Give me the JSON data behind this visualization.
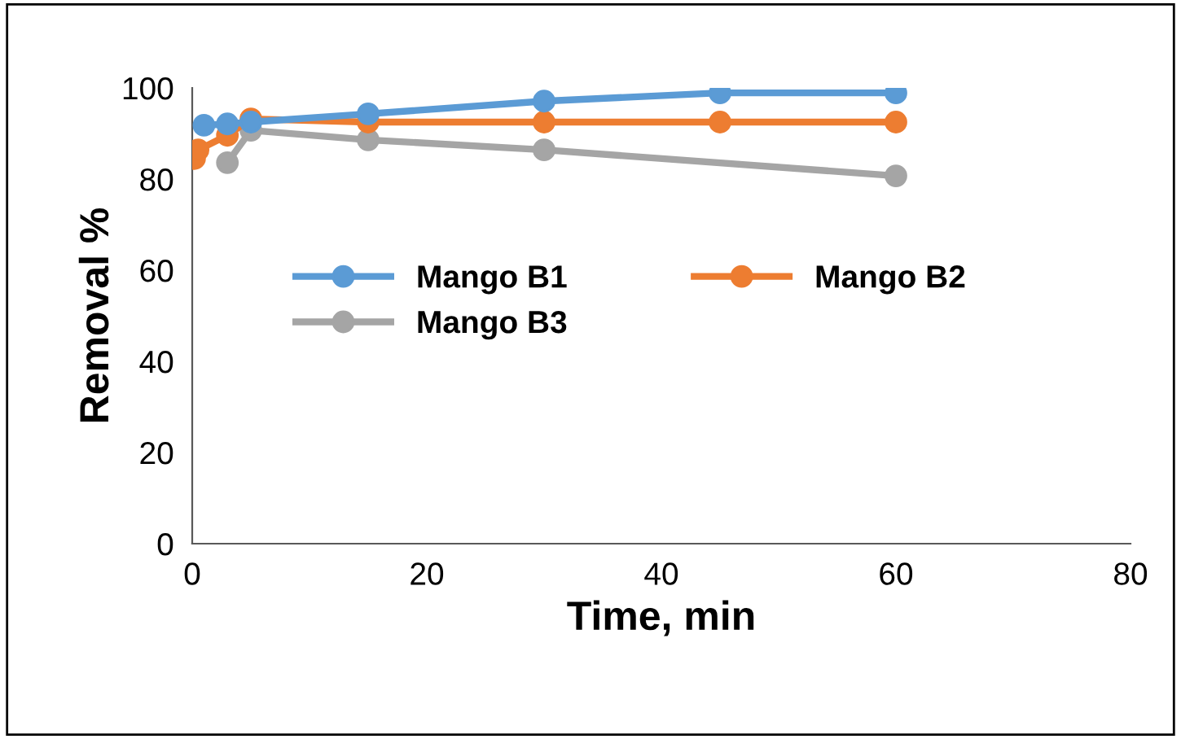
{
  "chart_data": {
    "type": "line",
    "xlabel": "Time, min",
    "ylabel": "Removal %",
    "xlim": [
      0,
      80
    ],
    "xticks": [
      0,
      20,
      40,
      60,
      80
    ],
    "ylim": [
      0,
      100
    ],
    "yticks": [
      0,
      20,
      40,
      60,
      80,
      100
    ],
    "grid": false,
    "legend": "left",
    "marker": "circle",
    "line_style": "solid",
    "series": [
      {
        "name": "Mango B1",
        "color": "#5b9bd5",
        "x": [
          1,
          3,
          5,
          15,
          30,
          45,
          60
        ],
        "values": [
          91.8,
          92.1,
          92.5,
          94.3,
          97.1,
          98.9,
          98.9
        ]
      },
      {
        "name": "Mango B2",
        "color": "#ed7d31",
        "x": [
          0.2,
          0.5,
          3,
          5,
          15,
          30,
          45,
          60
        ],
        "values": [
          84.5,
          86.4,
          89.6,
          93.2,
          92.5,
          92.5,
          92.5,
          92.5
        ]
      },
      {
        "name": "Mango B3",
        "color": "#a5a5a5",
        "x": [
          3,
          5,
          15,
          30,
          60
        ],
        "values": [
          83.6,
          90.7,
          88.6,
          86.4,
          80.7
        ]
      }
    ]
  }
}
